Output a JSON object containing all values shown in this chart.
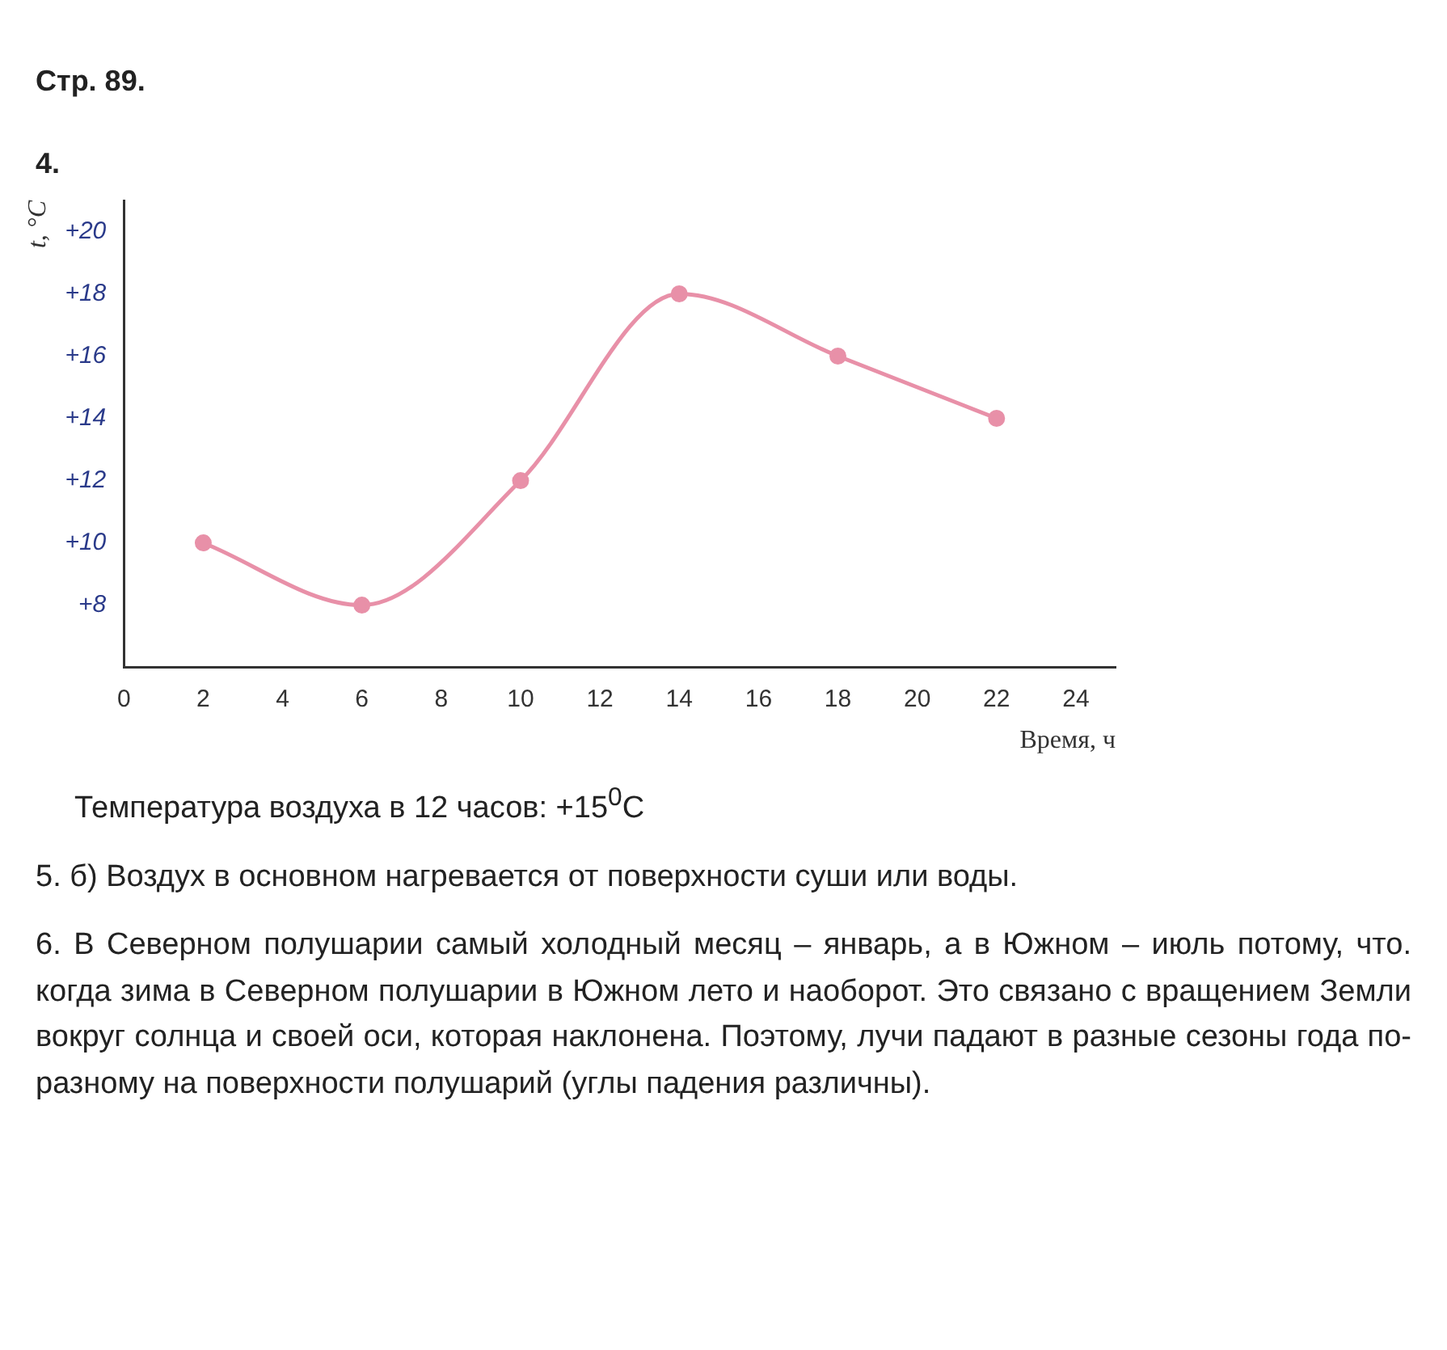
{
  "chart_data": {
    "type": "line",
    "title": "Стр. 89.",
    "subtitle": "4.",
    "xlabel": "Время, ч",
    "ylabel": "t, °C",
    "x": [
      2,
      6,
      10,
      14,
      18,
      22
    ],
    "series": [
      {
        "color": "#e890a8",
        "values": [
          10,
          8,
          12,
          18,
          16,
          14
        ]
      }
    ],
    "xlim": [
      0,
      25
    ],
    "xticks": [
      0,
      2,
      4,
      6,
      8,
      10,
      12,
      14,
      16,
      18,
      20,
      22,
      24
    ],
    "ylim": [
      6,
      21
    ],
    "yticks": [
      {
        "value": 8,
        "label": "+8"
      },
      {
        "value": 10,
        "label": "+10"
      },
      {
        "value": 12,
        "label": "+12"
      },
      {
        "value": 14,
        "label": "+14"
      },
      {
        "value": 16,
        "label": "+16"
      },
      {
        "value": 18,
        "label": "+18"
      },
      {
        "value": 20,
        "label": "+20"
      }
    ],
    "grid": false,
    "legend": false,
    "marker": "circle",
    "line_style": "solid",
    "annotations": [
      "Температура воздуха в 12 часов: +15$^{0}$C",
      "5. б) Воздух в основном нагревается от поверхности суши или воды.",
      "6. В Северном полушарии самый холодный месяц – январь, а в Южном – июль потому, что. когда зима в Северном полушарии в Южном лето и наоборот. Это связано с вращением Земли вокруг солнца и своей оси, которая наклонена. Поэтому, лучи падают в разные сезоны года по-разному на поверхности полушарий (углы падения различны)."
    ]
  }
}
